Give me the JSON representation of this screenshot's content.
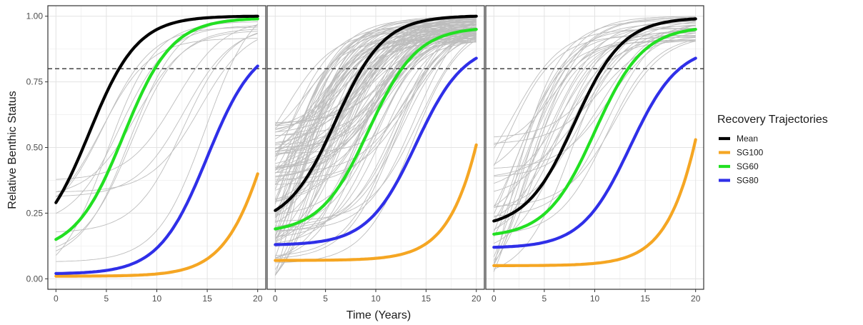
{
  "chart_data": {
    "type": "line",
    "xlabel": "Time (Years)",
    "ylabel": "Relative Benthic Status",
    "xlim": [
      -0.8,
      20.8
    ],
    "ylim": [
      -0.04,
      1.04
    ],
    "x_ticks": [
      "0",
      "5",
      "10",
      "15",
      "20"
    ],
    "y_ticks": [
      "0.00",
      "0.25",
      "0.50",
      "0.75",
      "1.00"
    ],
    "reference_line": {
      "y": 0.8,
      "style": "dashed"
    },
    "legend": {
      "title": "Recovery Trajectories",
      "placement": "right",
      "entries": [
        "Mean",
        "SG100",
        "SG60",
        "SG80"
      ]
    },
    "colors": {
      "Mean": "#000000",
      "SG100": "#f5a623",
      "SG60": "#22e022",
      "SG80": "#2f2fe8",
      "background_runs": "#bdbdbd"
    },
    "panels": [
      {
        "series": [
          {
            "name": "Mean",
            "start": 0.29,
            "end": 1.0,
            "midpoint": 3.3
          },
          {
            "name": "SG60",
            "start": 0.15,
            "end": 0.99,
            "midpoint": 6.7
          },
          {
            "name": "SG80",
            "start": 0.02,
            "end": 0.81,
            "midpoint": 15.0
          },
          {
            "name": "SG100",
            "start": 0.01,
            "end": 0.4,
            "midpoint": 22.0
          }
        ],
        "background_runs": {
          "count": 12,
          "start_range": [
            0.0,
            0.38
          ],
          "midpoint_range": [
            2.0,
            16.5
          ]
        }
      },
      {
        "series": [
          {
            "name": "Mean",
            "start": 0.26,
            "end": 1.0,
            "midpoint": 6.0
          },
          {
            "name": "SG60",
            "start": 0.19,
            "end": 0.95,
            "midpoint": 9.3
          },
          {
            "name": "SG80",
            "start": 0.13,
            "end": 0.84,
            "midpoint": 14.0
          },
          {
            "name": "SG100",
            "start": 0.07,
            "end": 0.51,
            "midpoint": 24.0
          }
        ],
        "background_runs": {
          "count": 100,
          "start_range": [
            0.01,
            0.6
          ],
          "midpoint_range": [
            0.5,
            14.5
          ]
        }
      },
      {
        "series": [
          {
            "name": "Mean",
            "start": 0.22,
            "end": 0.99,
            "midpoint": 8.0
          },
          {
            "name": "SG60",
            "start": 0.17,
            "end": 0.95,
            "midpoint": 10.0
          },
          {
            "name": "SG80",
            "start": 0.12,
            "end": 0.84,
            "midpoint": 13.5
          },
          {
            "name": "SG100",
            "start": 0.05,
            "end": 0.53,
            "midpoint": 24.0
          }
        ],
        "background_runs": {
          "count": 32,
          "start_range": [
            0.02,
            0.55
          ],
          "midpoint_range": [
            1.0,
            13.0
          ]
        }
      }
    ]
  }
}
